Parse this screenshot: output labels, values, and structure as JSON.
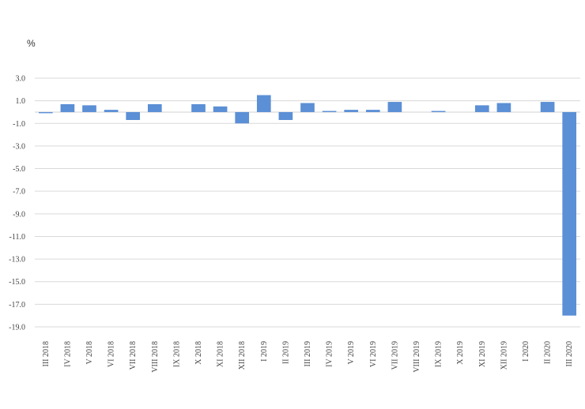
{
  "chart_data": {
    "type": "bar",
    "ylabel": "%",
    "ylim": [
      -19.0,
      3.0
    ],
    "yticks": [
      "3.0",
      "1.0",
      "-1.0",
      "-3.0",
      "-5.0",
      "-7.0",
      "-9.0",
      "-11.0",
      "-13.0",
      "-15.0",
      "-17.0",
      "-19.0"
    ],
    "ytick_values": [
      3,
      1,
      -1,
      -3,
      -5,
      -7,
      -9,
      -11,
      -13,
      -15,
      -17,
      -19
    ],
    "grid": true,
    "bar_color": "#5b8fd6",
    "categories": [
      "III 2018",
      "IV 2018",
      "V 2018",
      "VI 2018",
      "VII 2018",
      "VIII 2018",
      "IX 2018",
      "X 2018",
      "XI 2018",
      "XII 2018",
      "I 2019",
      "II 2019",
      "III 2019",
      "IV 2019",
      "V 2019",
      "VI 2019",
      "VII 2019",
      "VIII 2019",
      "IX 2019",
      "X 2019",
      "XI 2019",
      "XII 2019",
      "I 2020",
      "II 2020",
      "III 2020"
    ],
    "values": [
      -0.1,
      0.7,
      0.6,
      0.2,
      -0.7,
      0.7,
      0.0,
      0.7,
      0.5,
      -1.0,
      1.5,
      -0.7,
      0.8,
      0.1,
      0.2,
      0.2,
      0.9,
      0.0,
      0.1,
      0.0,
      0.6,
      0.8,
      0.0,
      0.9,
      -18.0
    ]
  }
}
